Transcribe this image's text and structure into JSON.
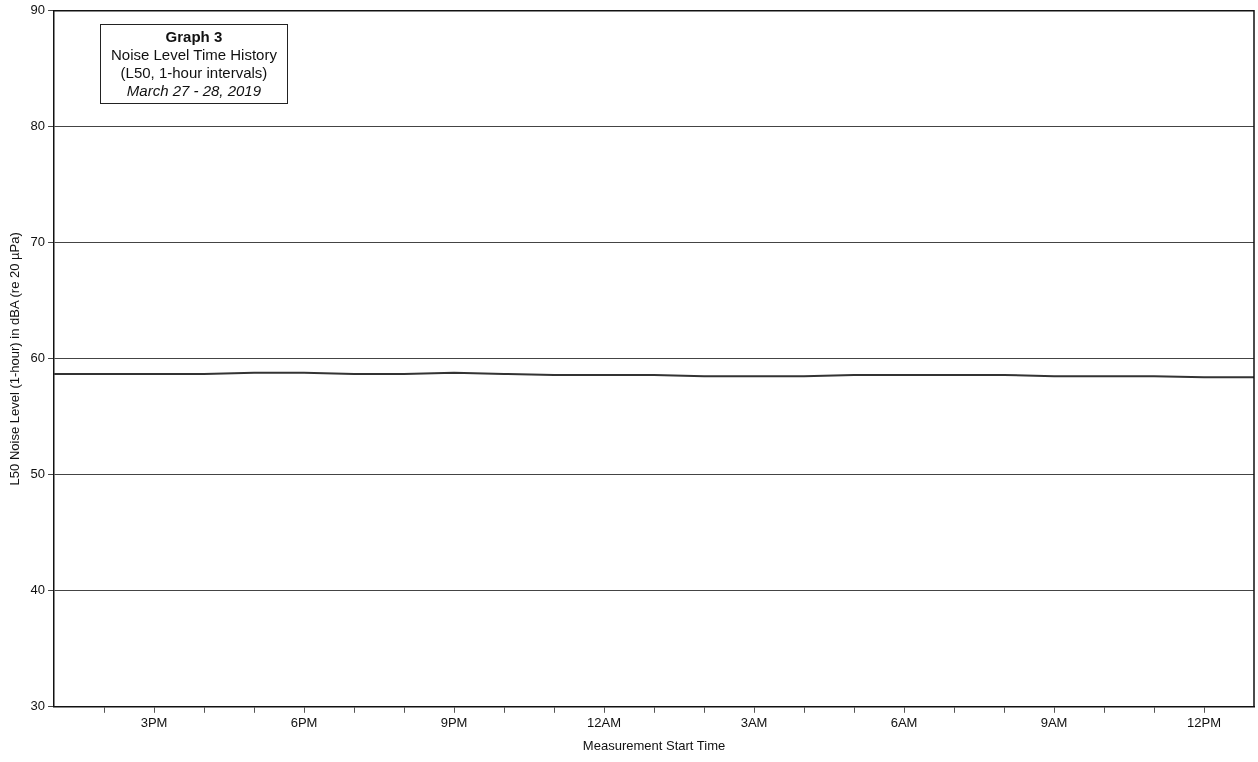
{
  "chart_data": {
    "type": "line",
    "title": "Graph 3",
    "subtitle": "Noise Level Time History",
    "annotations": [
      "(L50, 1-hour intervals)",
      "March 27 - 28, 2019"
    ],
    "xlabel": "Measurement Start Time",
    "ylabel": "L50 Noise Level (1-hour) in dBA (re 20 µPa)",
    "x": [
      "2019-03-27T13:00",
      "2019-03-27T14:00",
      "2019-03-27T15:00",
      "2019-03-27T16:00",
      "2019-03-27T17:00",
      "2019-03-27T18:00",
      "2019-03-27T19:00",
      "2019-03-27T20:00",
      "2019-03-27T21:00",
      "2019-03-27T22:00",
      "2019-03-27T23:00",
      "2019-03-28T00:00",
      "2019-03-28T01:00",
      "2019-03-28T02:00",
      "2019-03-28T03:00",
      "2019-03-28T04:00",
      "2019-03-28T05:00",
      "2019-03-28T06:00",
      "2019-03-28T07:00",
      "2019-03-28T08:00",
      "2019-03-28T09:00",
      "2019-03-28T10:00",
      "2019-03-28T11:00",
      "2019-03-28T12:00",
      "2019-03-28T13:00"
    ],
    "series": [
      {
        "color": "#333333",
        "values": [
          58.7,
          58.7,
          58.7,
          58.7,
          58.8,
          58.8,
          58.7,
          58.7,
          58.8,
          58.7,
          58.6,
          58.6,
          58.6,
          58.5,
          58.5,
          58.5,
          58.6,
          58.6,
          58.6,
          58.6,
          58.5,
          58.5,
          58.5,
          58.4,
          58.4
        ]
      }
    ],
    "xlim": [
      "2019-03-27T13:00",
      "2019-03-28T13:00"
    ],
    "xticks": [
      {
        "value": "2019-03-27T14:00",
        "label": null
      },
      {
        "value": "2019-03-27T15:00",
        "label": "3PM"
      },
      {
        "value": "2019-03-27T16:00",
        "label": null
      },
      {
        "value": "2019-03-27T17:00",
        "label": null
      },
      {
        "value": "2019-03-27T18:00",
        "label": "6PM"
      },
      {
        "value": "2019-03-27T19:00",
        "label": null
      },
      {
        "value": "2019-03-27T20:00",
        "label": null
      },
      {
        "value": "2019-03-27T21:00",
        "label": "9PM"
      },
      {
        "value": "2019-03-27T22:00",
        "label": null
      },
      {
        "value": "2019-03-27T23:00",
        "label": null
      },
      {
        "value": "2019-03-28T00:00",
        "label": "12AM"
      },
      {
        "value": "2019-03-28T01:00",
        "label": null
      },
      {
        "value": "2019-03-28T02:00",
        "label": null
      },
      {
        "value": "2019-03-28T03:00",
        "label": "3AM"
      },
      {
        "value": "2019-03-28T04:00",
        "label": null
      },
      {
        "value": "2019-03-28T05:00",
        "label": null
      },
      {
        "value": "2019-03-28T06:00",
        "label": "6AM"
      },
      {
        "value": "2019-03-28T07:00",
        "label": null
      },
      {
        "value": "2019-03-28T08:00",
        "label": null
      },
      {
        "value": "2019-03-28T09:00",
        "label": "9AM"
      },
      {
        "value": "2019-03-28T10:00",
        "label": null
      },
      {
        "value": "2019-03-28T11:00",
        "label": null
      },
      {
        "value": "2019-03-28T12:00",
        "label": "12PM"
      }
    ],
    "ylim": [
      30,
      90
    ],
    "yticks": [
      30,
      40,
      50,
      60,
      70,
      80,
      90
    ],
    "grid": "y",
    "legend": false,
    "marker": "none",
    "line_style": "solid"
  }
}
